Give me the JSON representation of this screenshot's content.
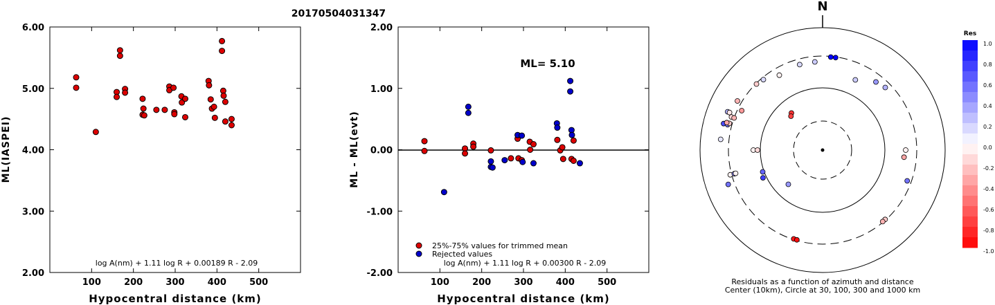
{
  "title": "20170504031347",
  "colors": {
    "accepted": "#dd0000",
    "rejected": "#0000cc",
    "axis": "#000000"
  },
  "chart_data": [
    {
      "id": "left",
      "type": "scatter",
      "xlabel": "Hypocentral distance (km)",
      "ylabel": "ML(IASPEI)",
      "xlim": [
        0,
        600
      ],
      "ylim": [
        2.0,
        6.0
      ],
      "xticks": [
        "100",
        "200",
        "300",
        "400",
        "500"
      ],
      "xtick_values": [
        100,
        200,
        300,
        400,
        500
      ],
      "yticks": [
        "2.00",
        "3.00",
        "4.00",
        "5.00",
        "6.00"
      ],
      "ytick_values": [
        2,
        3,
        4,
        5,
        6
      ],
      "formula": "log A(nm) + 1.11 log R + 0.00189 R - 2.09",
      "points": [
        [
          63,
          5.18
        ],
        [
          63,
          5.01
        ],
        [
          110,
          4.29
        ],
        [
          160,
          4.94
        ],
        [
          160,
          4.86
        ],
        [
          168,
          5.62
        ],
        [
          168,
          5.53
        ],
        [
          180,
          4.99
        ],
        [
          180,
          4.93
        ],
        [
          222,
          4.83
        ],
        [
          224,
          4.67
        ],
        [
          222,
          4.57
        ],
        [
          226,
          4.56
        ],
        [
          255,
          4.65
        ],
        [
          275,
          4.65
        ],
        [
          286,
          5.03
        ],
        [
          286,
          4.97
        ],
        [
          296,
          5.01
        ],
        [
          298,
          4.61
        ],
        [
          298,
          4.58
        ],
        [
          315,
          4.87
        ],
        [
          316,
          4.77
        ],
        [
          324,
          4.83
        ],
        [
          324,
          4.53
        ],
        [
          380,
          5.12
        ],
        [
          381,
          5.05
        ],
        [
          385,
          4.82
        ],
        [
          388,
          4.67
        ],
        [
          393,
          4.7
        ],
        [
          395,
          4.52
        ],
        [
          412,
          5.77
        ],
        [
          412,
          5.61
        ],
        [
          415,
          4.96
        ],
        [
          416,
          4.88
        ],
        [
          420,
          4.78
        ],
        [
          420,
          4.46
        ],
        [
          435,
          4.5
        ],
        [
          435,
          4.4
        ]
      ]
    },
    {
      "id": "middle",
      "type": "scatter",
      "xlabel": "Hypocentral distance (km)",
      "ylabel": "ML - ML(evt)",
      "xlim": [
        0,
        600
      ],
      "ylim": [
        -2.0,
        2.0
      ],
      "xticks": [
        "100",
        "200",
        "300",
        "400",
        "500"
      ],
      "xtick_values": [
        100,
        200,
        300,
        400,
        500
      ],
      "yticks": [
        "-2.00",
        "-1.00",
        "0.00",
        "1.00",
        "2.00"
      ],
      "ytick_values": [
        -2,
        -1,
        0,
        1,
        2
      ],
      "annotation": "ML= 5.10",
      "legend": [
        "25%-75% values for trimmed mean",
        "Rejected values"
      ],
      "formula": "log A(nm) + 1.11 log R + 0.00300 R - 2.09",
      "series": [
        {
          "name": "25%-75% values for trimmed mean",
          "points": [
            [
              63,
              0.14
            ],
            [
              63,
              -0.02
            ],
            [
              160,
              0.02
            ],
            [
              160,
              -0.06
            ],
            [
              180,
              0.1
            ],
            [
              180,
              0.05
            ],
            [
              222,
              -0.01
            ],
            [
              270,
              -0.14
            ],
            [
              286,
              0.18
            ],
            [
              288,
              -0.14
            ],
            [
              296,
              -0.17
            ],
            [
              315,
              0.13
            ],
            [
              316,
              0.0
            ],
            [
              324,
              0.09
            ],
            [
              381,
              0.16
            ],
            [
              388,
              -0.01
            ],
            [
              393,
              0.04
            ],
            [
              395,
              -0.15
            ],
            [
              415,
              -0.15
            ],
            [
              420,
              0.15
            ],
            [
              420,
              -0.18
            ]
          ]
        },
        {
          "name": "Rejected values",
          "points": [
            [
              110,
              -0.69
            ],
            [
              168,
              0.7
            ],
            [
              168,
              0.6
            ],
            [
              222,
              -0.19
            ],
            [
              222,
              -0.28
            ],
            [
              226,
              -0.29
            ],
            [
              255,
              -0.17
            ],
            [
              286,
              0.24
            ],
            [
              296,
              0.23
            ],
            [
              298,
              -0.2
            ],
            [
              324,
              -0.22
            ],
            [
              380,
              0.43
            ],
            [
              381,
              0.36
            ],
            [
              412,
              1.12
            ],
            [
              412,
              0.95
            ],
            [
              415,
              0.32
            ],
            [
              416,
              0.24
            ],
            [
              435,
              -0.22
            ]
          ]
        }
      ]
    },
    {
      "id": "right",
      "type": "scatter",
      "north_label": "N",
      "caption_line1": "Residuals as a function of azimuth and distance",
      "caption_line2": "Center (10km), Circle at 30, 100, 300 and 1000 km",
      "points_polar": [
        [
          198,
          1.35,
          -0.9
        ],
        [
          196,
          1.35,
          -0.95
        ],
        [
          250,
          1.45,
          0.55
        ],
        [
          255,
          1.38,
          -0.05
        ],
        [
          255,
          1.32,
          0.45
        ],
        [
          255,
          1.3,
          -0.05
        ],
        [
          270,
          1.0,
          -0.05
        ],
        [
          270,
          0.94,
          -0.15
        ],
        [
          276,
          1.48,
          0.1
        ],
        [
          285,
          1.48,
          0.7
        ],
        [
          285,
          1.42,
          0.5
        ],
        [
          286,
          1.4,
          -0.2
        ],
        [
          286,
          1.44,
          -0.35
        ],
        [
          290,
          1.4,
          -0.15
        ],
        [
          290,
          1.36,
          -0.3
        ],
        [
          292,
          1.48,
          0.3
        ],
        [
          292,
          1.45,
          -0.1
        ],
        [
          300,
          1.42,
          -0.3
        ],
        [
          296,
          1.3,
          -0.4
        ],
        [
          315,
          1.35,
          -0.2
        ],
        [
          320,
          1.33,
          0.15
        ],
        [
          330,
          1.25,
          -0.05
        ],
        [
          320,
          0.7,
          -0.8
        ],
        [
          317,
          0.67,
          -0.75
        ],
        [
          345,
          1.28,
          0.15
        ],
        [
          355,
          1.28,
          0.2
        ],
        [
          5,
          1.35,
          1.0
        ],
        [
          8,
          1.35,
          1.0
        ],
        [
          25,
          1.12,
          0.2
        ],
        [
          38,
          1.25,
          0.4
        ],
        [
          45,
          1.28,
          0.3
        ],
        [
          250,
          0.92,
          0.6
        ],
        [
          245,
          0.95,
          0.75
        ],
        [
          225,
          0.7,
          0.4
        ],
        [
          90,
          1.2,
          -0.05
        ],
        [
          95,
          1.18,
          -0.35
        ],
        [
          110,
          1.3,
          0.55
        ],
        [
          138,
          1.35,
          -0.2
        ],
        [
          140,
          1.35,
          -0.3
        ]
      ]
    }
  ],
  "colorbar": {
    "title": "Res",
    "labels": [
      "1.0",
      "0.8",
      "0.6",
      "0.4",
      "0.2",
      "0.0",
      "-0.2",
      "-0.4",
      "-0.6",
      "-0.8",
      "-1.0"
    ]
  }
}
